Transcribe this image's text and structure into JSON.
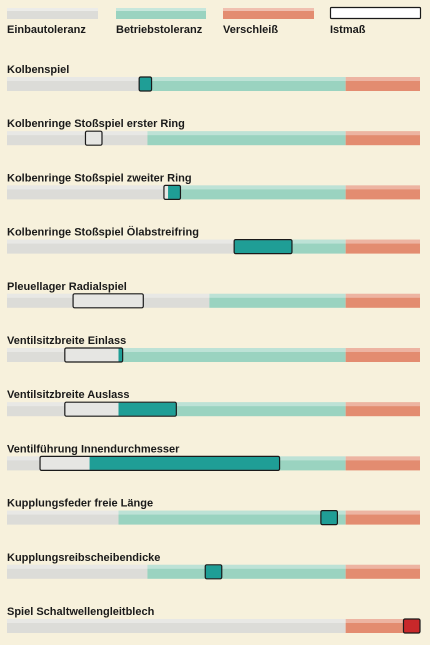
{
  "chart_data": {
    "type": "bar",
    "legend": [
      {
        "name": "Einbautoleranz",
        "kind": "install",
        "color": "#dcdcd8"
      },
      {
        "name": "Betriebstoleranz",
        "kind": "operating",
        "color": "#9ad3c0"
      },
      {
        "name": "Verschleiß",
        "kind": "wear",
        "color": "#e38c70"
      },
      {
        "name": "Istmaß",
        "kind": "actual",
        "color": "#ffffff"
      }
    ],
    "colors": {
      "actual_in_install": "#e6e6e3",
      "actual_in_operating": "#1f9e96",
      "actual_in_wear": "#c8282a"
    },
    "rows": [
      {
        "label": "Kolbenspiel",
        "install_end": 0.32,
        "operating_end": 0.82,
        "actual": [
          0.32,
          0.35
        ]
      },
      {
        "label": "Kolbenringe Stoßspiel erster Ring",
        "install_end": 0.34,
        "operating_end": 0.82,
        "actual": [
          0.19,
          0.23
        ]
      },
      {
        "label": "Kolbenringe Stoßspiel zweiter Ring",
        "install_end": 0.39,
        "operating_end": 0.82,
        "actual": [
          0.38,
          0.42
        ]
      },
      {
        "label": "Kolbenringe Stoßspiel Ölabstreifring",
        "install_end": 0.55,
        "operating_end": 0.82,
        "actual": [
          0.55,
          0.69
        ]
      },
      {
        "label": "Pleuellager Radialspiel",
        "install_end": 0.49,
        "operating_end": 0.82,
        "actual": [
          0.16,
          0.33
        ]
      },
      {
        "label": "Ventilsitzbreite Einlass",
        "install_end": 0.27,
        "operating_end": 0.82,
        "actual": [
          0.14,
          0.28
        ]
      },
      {
        "label": "Ventilsitzbreite Auslass",
        "install_end": 0.27,
        "operating_end": 0.82,
        "actual": [
          0.14,
          0.41
        ]
      },
      {
        "label": "Ventilführung Innendurchmesser",
        "install_end": 0.2,
        "operating_end": 0.82,
        "actual": [
          0.08,
          0.66
        ]
      },
      {
        "label": "Kupplungsfeder freie Länge",
        "install_end": 0.27,
        "operating_end": 0.82,
        "actual": [
          0.76,
          0.8
        ]
      },
      {
        "label": "Kupplungsreibscheibendicke",
        "install_end": 0.34,
        "operating_end": 0.82,
        "actual": [
          0.48,
          0.52
        ]
      },
      {
        "label": "Spiel Schaltwellengleitblech",
        "install_end": 0.82,
        "operating_end": 0.82,
        "actual": [
          0.96,
          1.0
        ]
      }
    ]
  }
}
